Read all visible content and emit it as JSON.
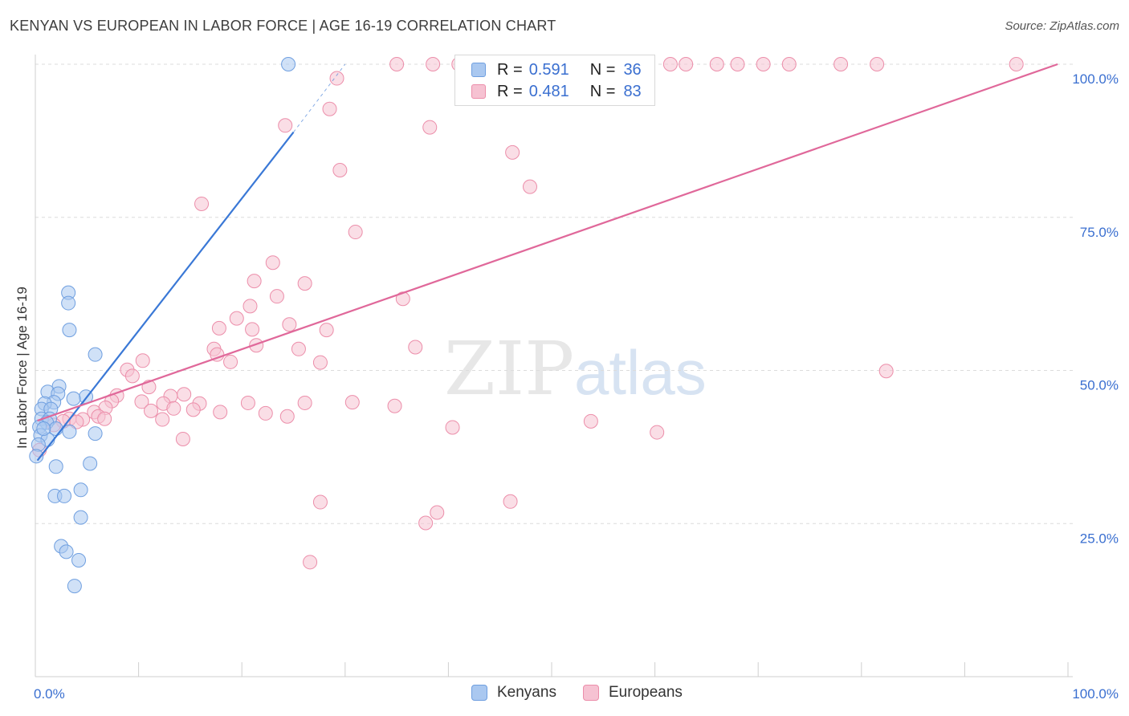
{
  "title": "KENYAN VS EUROPEAN IN LABOR FORCE | AGE 16-19 CORRELATION CHART",
  "source": "Source: ZipAtlas.com",
  "watermark": {
    "zip": "ZIP",
    "atlas": "atlas"
  },
  "colors": {
    "blue_fill": "#aac8f0",
    "blue_stroke": "#6f9fe0",
    "blue_line": "#3a78d6",
    "pink_fill": "#f6c2d2",
    "pink_stroke": "#ec8eaa",
    "pink_line": "#e0689a",
    "grid": "#dcdcdc",
    "axis_text": "#3a6fd0"
  },
  "legend": {
    "rows": [
      {
        "r_label": "R =",
        "r_value": "0.591",
        "n_label": "N =",
        "n_value": "36"
      },
      {
        "r_label": "R =",
        "r_value": "0.481",
        "n_label": "N =",
        "n_value": "83"
      }
    ]
  },
  "bottom_legend": [
    "Kenyans",
    "Europeans"
  ],
  "chart_data": {
    "type": "scatter",
    "title": "KENYAN VS EUROPEAN IN LABOR FORCE | AGE 16-19 CORRELATION CHART",
    "xlabel": "",
    "ylabel": "In Labor Force | Age 16-19",
    "xlim": [
      0,
      100
    ],
    "ylim": [
      0,
      100
    ],
    "x_tick_labels": [
      "0.0%",
      "100.0%"
    ],
    "y_tick_values": [
      25,
      50,
      75,
      100
    ],
    "y_tick_labels": [
      "25.0%",
      "50.0%",
      "75.0%",
      "100.0%"
    ],
    "series": [
      {
        "name": "Kenyans",
        "r": 0.591,
        "n": 36,
        "trend": {
          "x0": 0.2,
          "y0": 35.3,
          "x1": 25.0,
          "y1": 88.9,
          "dash_to_x": 30.0,
          "dash_to_y": 100
        },
        "points": [
          [
            24.5,
            100
          ],
          [
            3.2,
            62.7
          ],
          [
            3.2,
            61.0
          ],
          [
            3.3,
            56.6
          ],
          [
            5.8,
            52.6
          ],
          [
            2.3,
            47.4
          ],
          [
            1.2,
            46.5
          ],
          [
            2.2,
            46.2
          ],
          [
            4.9,
            45.7
          ],
          [
            3.7,
            45.4
          ],
          [
            1.8,
            44.8
          ],
          [
            0.9,
            44.6
          ],
          [
            0.6,
            43.7
          ],
          [
            1.5,
            43.7
          ],
          [
            0.6,
            42.1
          ],
          [
            1.4,
            42.1
          ],
          [
            1.1,
            41.5
          ],
          [
            0.4,
            40.8
          ],
          [
            2.0,
            40.5
          ],
          [
            3.3,
            40.0
          ],
          [
            5.8,
            39.7
          ],
          [
            0.5,
            39.4
          ],
          [
            1.2,
            38.7
          ],
          [
            0.3,
            37.9
          ],
          [
            0.1,
            36.0
          ],
          [
            5.3,
            34.8
          ],
          [
            2.0,
            34.3
          ],
          [
            4.4,
            30.5
          ],
          [
            1.9,
            29.5
          ],
          [
            2.8,
            29.5
          ],
          [
            4.4,
            26.0
          ],
          [
            2.5,
            21.3
          ],
          [
            3.0,
            20.4
          ],
          [
            4.2,
            19.0
          ],
          [
            3.8,
            14.8
          ],
          [
            0.8,
            40.5
          ]
        ]
      },
      {
        "name": "Europeans",
        "r": 0.481,
        "n": 83,
        "trend": {
          "x0": 0.2,
          "y0": 41.8,
          "x1": 99.0,
          "y1": 100
        },
        "points": [
          [
            35.0,
            100
          ],
          [
            38.5,
            100
          ],
          [
            41.0,
            100
          ],
          [
            42.0,
            100
          ],
          [
            58.0,
            100
          ],
          [
            61.5,
            100
          ],
          [
            63.0,
            100
          ],
          [
            66.0,
            100
          ],
          [
            68.0,
            100
          ],
          [
            70.5,
            100
          ],
          [
            73.0,
            100
          ],
          [
            78.0,
            100
          ],
          [
            81.5,
            100
          ],
          [
            95.0,
            100
          ],
          [
            29.2,
            97.7
          ],
          [
            28.5,
            92.7
          ],
          [
            24.2,
            90.0
          ],
          [
            38.2,
            89.7
          ],
          [
            46.2,
            85.6
          ],
          [
            29.5,
            82.7
          ],
          [
            47.9,
            80.0
          ],
          [
            16.1,
            77.2
          ],
          [
            31.0,
            72.6
          ],
          [
            23.0,
            67.6
          ],
          [
            21.2,
            64.6
          ],
          [
            26.1,
            64.2
          ],
          [
            23.4,
            62.1
          ],
          [
            35.6,
            61.7
          ],
          [
            20.8,
            60.5
          ],
          [
            19.5,
            58.5
          ],
          [
            24.6,
            57.5
          ],
          [
            17.8,
            56.9
          ],
          [
            21.0,
            56.7
          ],
          [
            28.2,
            56.6
          ],
          [
            17.3,
            53.5
          ],
          [
            25.5,
            53.5
          ],
          [
            36.8,
            53.8
          ],
          [
            21.4,
            54.1
          ],
          [
            17.6,
            52.6
          ],
          [
            10.4,
            51.6
          ],
          [
            18.9,
            51.4
          ],
          [
            27.6,
            51.3
          ],
          [
            8.9,
            50.1
          ],
          [
            9.4,
            49.1
          ],
          [
            82.4,
            49.9
          ],
          [
            11.0,
            47.3
          ],
          [
            7.9,
            45.9
          ],
          [
            13.1,
            45.8
          ],
          [
            14.4,
            46.1
          ],
          [
            10.3,
            44.9
          ],
          [
            7.4,
            45.0
          ],
          [
            12.4,
            44.6
          ],
          [
            15.9,
            44.6
          ],
          [
            20.6,
            44.7
          ],
          [
            26.1,
            44.7
          ],
          [
            30.7,
            44.8
          ],
          [
            34.8,
            44.2
          ],
          [
            6.8,
            43.9
          ],
          [
            11.2,
            43.4
          ],
          [
            13.4,
            43.8
          ],
          [
            15.3,
            43.6
          ],
          [
            17.9,
            43.2
          ],
          [
            22.3,
            43.0
          ],
          [
            24.4,
            42.5
          ],
          [
            5.7,
            43.2
          ],
          [
            6.1,
            42.5
          ],
          [
            3.3,
            42.1
          ],
          [
            4.6,
            42.0
          ],
          [
            2.7,
            41.7
          ],
          [
            1.8,
            41.1
          ],
          [
            6.7,
            42.1
          ],
          [
            4.0,
            41.6
          ],
          [
            12.3,
            42.0
          ],
          [
            53.8,
            41.7
          ],
          [
            40.4,
            40.7
          ],
          [
            60.2,
            39.9
          ],
          [
            14.3,
            38.8
          ],
          [
            27.6,
            28.5
          ],
          [
            46.0,
            28.6
          ],
          [
            38.9,
            26.8
          ],
          [
            37.8,
            25.1
          ],
          [
            26.6,
            18.7
          ],
          [
            0.4,
            37.0
          ]
        ]
      }
    ]
  }
}
